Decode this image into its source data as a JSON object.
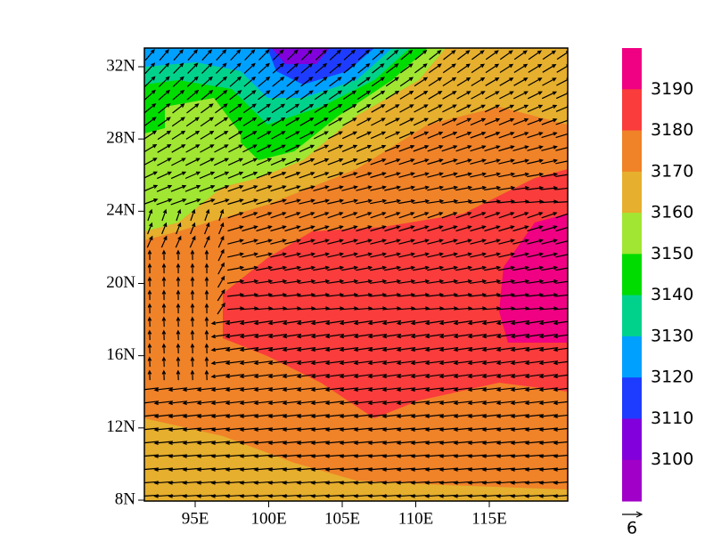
{
  "map": {
    "y_labels": [
      "32N",
      "28N",
      "24N",
      "20N",
      "16N",
      "12N",
      "8N"
    ],
    "x_labels": [
      "95E",
      "100E",
      "105E",
      "110E",
      "115E"
    ],
    "colorbar": {
      "labels": [
        3190,
        3180,
        3170,
        3160,
        3150,
        3140,
        3130,
        3120,
        3110,
        3100
      ]
    },
    "reference_vector": "6"
  }
}
